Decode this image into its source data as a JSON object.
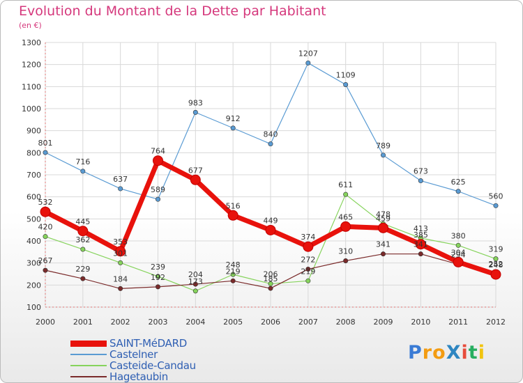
{
  "title": "Evolution du Montant de la Dette par Habitant",
  "subtitle": "(en €)",
  "logo": {
    "text": "ProXiti",
    "colors": [
      "#3a7bd5",
      "#f39c12",
      "#f39c12",
      "#2e86c1",
      "#e74c3c",
      "#27ae60",
      "#f1c40f"
    ]
  },
  "chart_data": {
    "type": "line",
    "title": "Evolution du Montant de la Dette par Habitant",
    "ylabel": "(en €)",
    "x": [
      "2000",
      "2001",
      "2002",
      "2003",
      "2004",
      "2005",
      "2006",
      "2007",
      "2008",
      "2009",
      "2010",
      "2011",
      "2012"
    ],
    "ylim": [
      100,
      1300
    ],
    "yticks": [
      "100",
      "200",
      "300",
      "400",
      "500",
      "600",
      "700",
      "800",
      "900",
      "1000",
      "1100",
      "1200",
      "1300"
    ],
    "grid": true,
    "legend_position": "bottom-left",
    "series": [
      {
        "name": "SAINT-MéDARD",
        "color": "#e8120c",
        "width": 7,
        "values": [
          532,
          445,
          353,
          764,
          677,
          516,
          449,
          374,
          465,
          459,
          385,
          304,
          248
        ],
        "labels": [
          "532",
          "445",
          "353",
          "764",
          "677",
          "516",
          "449",
          "374",
          "465",
          "459",
          "385",
          "304",
          "248"
        ]
      },
      {
        "name": "Castelner",
        "color": "#5a9bd3",
        "width": 1.2,
        "values": [
          801,
          716,
          637,
          589,
          983,
          912,
          840,
          1207,
          1109,
          789,
          673,
          625,
          560
        ],
        "labels": [
          "801",
          "716",
          "637",
          "589",
          "983",
          "912",
          "840",
          "1207",
          "1109",
          "789",
          "673",
          "625",
          "560"
        ]
      },
      {
        "name": "Casteide-Candau",
        "color": "#86d35c",
        "width": 1.2,
        "values": [
          420,
          362,
          301,
          239,
          173,
          248,
          206,
          219,
          611,
          478,
          413,
          380,
          319
        ],
        "labels": [
          "420",
          "362",
          "301",
          "239",
          "173",
          "248",
          "206",
          "219",
          "611",
          "478",
          "413",
          "380",
          "319"
        ]
      },
      {
        "name": "Hagetaubin",
        "color": "#7a2a2a",
        "width": 1.2,
        "values": [
          267,
          229,
          184,
          192,
          204,
          219,
          185,
          272,
          310,
          341,
          341,
          294,
          252
        ],
        "labels": [
          "267",
          "229",
          "184",
          "192",
          "204",
          "219",
          "185",
          "272",
          "310",
          "341",
          "341",
          "294",
          "252"
        ]
      }
    ]
  }
}
